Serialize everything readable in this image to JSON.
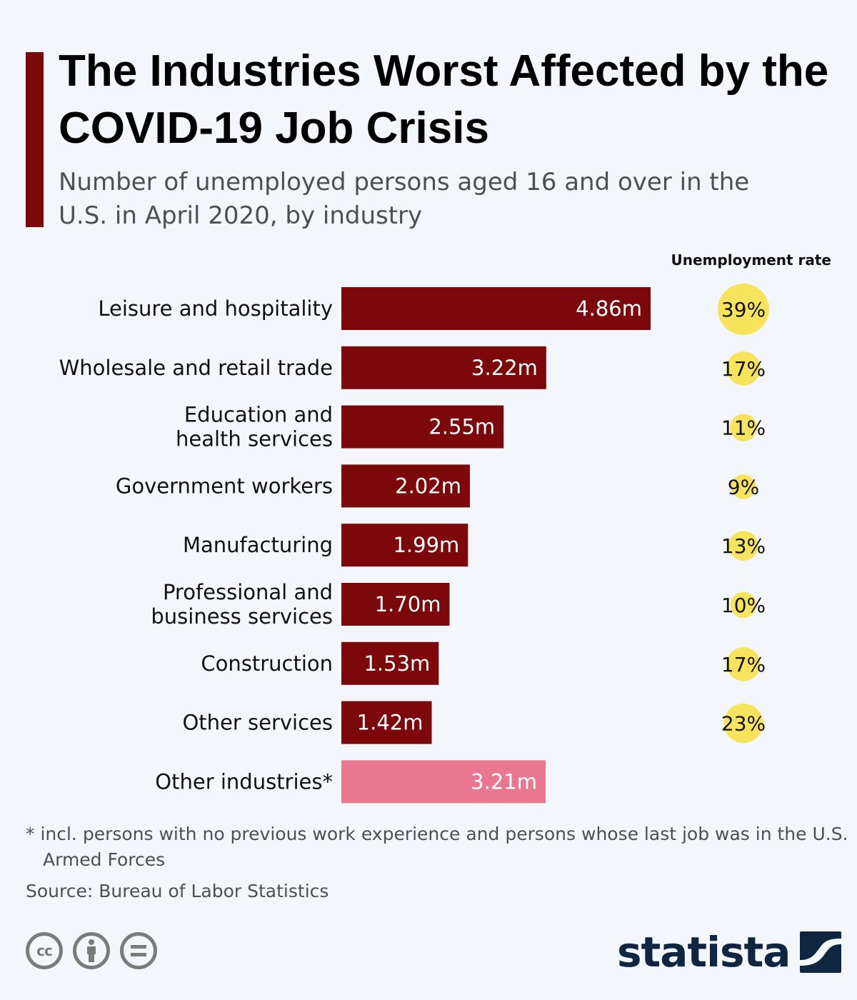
{
  "header": {
    "title": "The Industries Worst Affected by the COVID-19 Job Crisis",
    "subtitle": "Number of unemployed persons aged 16 and over in the U.S. in April 2020, by industry",
    "rate_column_header": "Unemployment rate"
  },
  "colors": {
    "accent": "#7d080b",
    "bar_primary": "#7d080b",
    "bar_other": "#e8778f",
    "rate_bubble": "#f8e45c",
    "background": "#f3f7fb",
    "logo": "#0f2640"
  },
  "chart_data": {
    "type": "bar",
    "orientation": "horizontal",
    "title": "The Industries Worst Affected by the COVID-19 Job Crisis",
    "subtitle": "Number of unemployed persons aged 16 and over in the U.S. in April 2020, by industry",
    "xlabel": "",
    "ylabel": "",
    "unit": "million",
    "xlim": [
      0,
      4.86
    ],
    "grid": false,
    "categories": [
      "Leisure and hospitality",
      "Wholesale and retail trade",
      "Education and health services",
      "Government workers",
      "Manufacturing",
      "Professional and business services",
      "Construction",
      "Other services",
      "Other industries*"
    ],
    "category_lines": [
      [
        "Leisure and hospitality"
      ],
      [
        "Wholesale and retail trade"
      ],
      [
        "Education and",
        "health services"
      ],
      [
        "Government workers"
      ],
      [
        "Manufacturing"
      ],
      [
        "Professional and",
        "business services"
      ],
      [
        "Construction"
      ],
      [
        "Other services"
      ],
      [
        "Other industries*"
      ]
    ],
    "values": [
      4.86,
      3.22,
      2.55,
      2.02,
      1.99,
      1.7,
      1.53,
      1.42,
      3.21
    ],
    "value_labels": [
      "4.86m",
      "3.22m",
      "2.55m",
      "2.02m",
      "1.99m",
      "1.70m",
      "1.53m",
      "1.42m",
      "3.21m"
    ],
    "highlight": [
      false,
      false,
      false,
      false,
      false,
      false,
      false,
      false,
      true
    ],
    "series": [
      {
        "name": "Unemployed persons (millions)",
        "values": [
          4.86,
          3.22,
          2.55,
          2.02,
          1.99,
          1.7,
          1.53,
          1.42,
          3.21
        ]
      },
      {
        "name": "Unemployment rate (%)",
        "values": [
          39,
          17,
          11,
          9,
          13,
          10,
          17,
          23,
          null
        ]
      }
    ],
    "rate_labels": [
      "39%",
      "17%",
      "11%",
      "9%",
      "13%",
      "10%",
      "17%",
      "23%",
      null
    ]
  },
  "footer": {
    "footnote": "* incl. persons with no previous work experience and persons whose last job was in the U.S. Armed Forces",
    "source": "Source: Bureau of Labor Statistics",
    "license_icons": [
      "cc-icon",
      "by-attribution-icon",
      "no-derivatives-icon"
    ],
    "cc_label": "cc",
    "logo_text": "statista"
  }
}
